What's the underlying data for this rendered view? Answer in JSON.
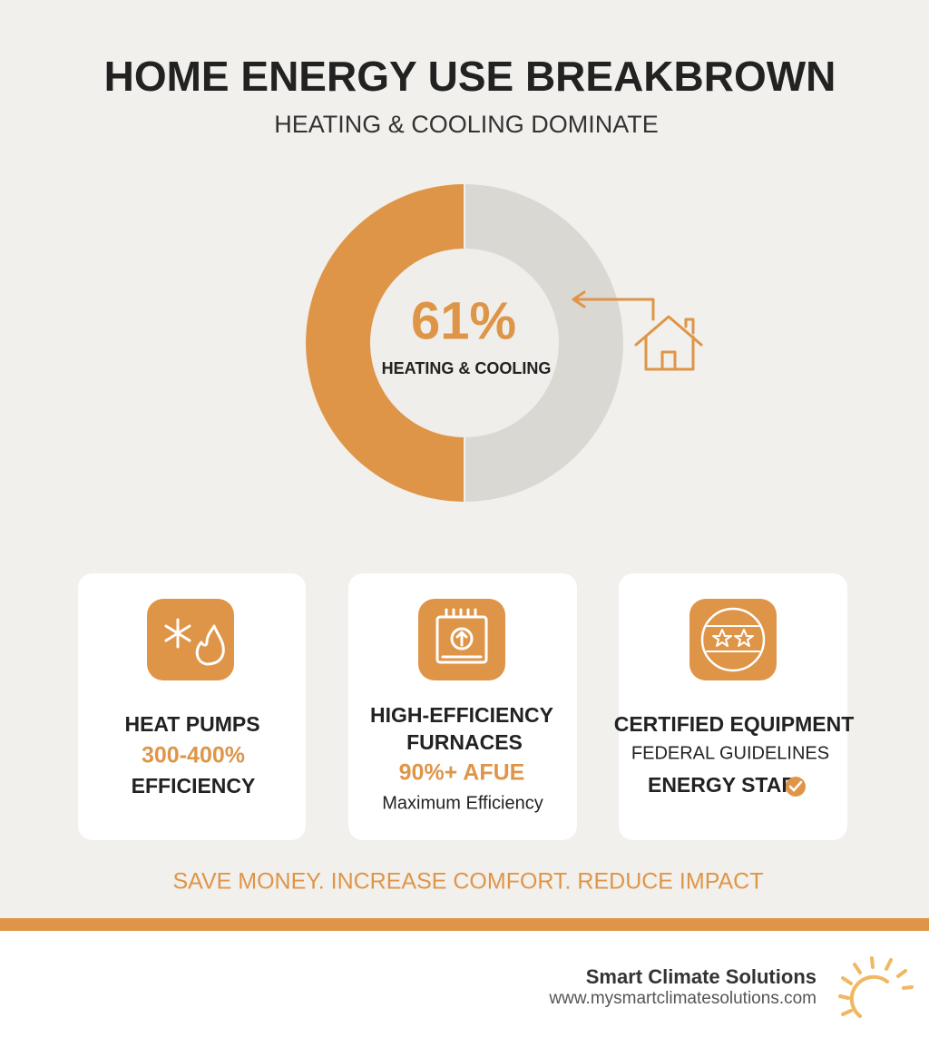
{
  "header": {
    "title": "HOME ENERGY USE BREAKBROWN",
    "subtitle": "HEATING & COOLING DOMINATE"
  },
  "highlight": {
    "value": "61%",
    "label": "HEATING & COOLING"
  },
  "cards": [
    {
      "title": [
        "HEAT PUMPS"
      ],
      "highlight": "300-400%",
      "detail": "EFFICIENCY"
    },
    {
      "title": [
        "HIGH-EFFICIENCY",
        "FURNACES"
      ],
      "highlight": "90%+ AFUE",
      "detail": "Maximum Efficiency"
    },
    {
      "title": [
        "CERTIFIED EQUIPMENT"
      ],
      "highlight": "FEDERAL GUIDELINES",
      "detail": "ENERGY STAR"
    }
  ],
  "tagline": "SAVE MONEY. INCREASE COMFORT. REDUCE IMPACT",
  "footer": {
    "company": "Smart Climate Solutions",
    "url": "www.mysmartclimatesolutions.com"
  }
}
